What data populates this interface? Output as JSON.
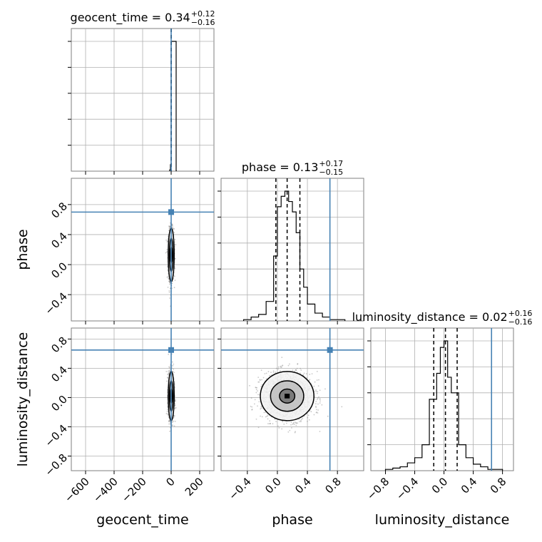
{
  "chart_data": {
    "type": "corner",
    "parameters": [
      "geocent_time",
      "phase",
      "luminosity_distance"
    ],
    "truths": {
      "geocent_time": 0.0,
      "phase": 0.7,
      "luminosity_distance": 0.65
    },
    "titles": [
      {
        "param": "geocent_time",
        "prefix": "geocent_time = 0.34",
        "sup": "+0.12",
        "sub": "−0.16"
      },
      {
        "param": "phase",
        "prefix": "phase = 0.13",
        "sup": "+0.17",
        "sub": "−0.15"
      },
      {
        "param": "luminosity_distance",
        "prefix": "luminosity_distance = 0.02",
        "sup": "+0.16",
        "sub": "−0.16"
      }
    ],
    "axes": {
      "geocent_time": {
        "range": [
          -700,
          300
        ],
        "ticks": [
          -600,
          -400,
          -200,
          0,
          200
        ],
        "tick_labels": [
          "−600",
          "−400",
          "−200",
          "0",
          "200"
        ]
      },
      "phase": {
        "range": [
          -0.75,
          1.15
        ],
        "ticks": [
          -0.4,
          0.0,
          0.4,
          0.8
        ],
        "tick_labels": [
          "−0.4",
          "0.0",
          "0.4",
          "0.8"
        ]
      },
      "luminosity_distance": {
        "range": [
          -1.0,
          0.95
        ],
        "ticks": [
          -0.8,
          -0.4,
          0.0,
          0.4,
          0.8
        ],
        "tick_labels": [
          "−0.8",
          "−0.4",
          "0.0",
          "0.4",
          "0.8"
        ]
      }
    },
    "grid": true,
    "histograms": {
      "geocent_time": {
        "bin_edges": [
          -10,
          -5,
          0,
          5,
          10,
          15,
          20,
          25,
          30,
          35,
          40
        ],
        "counts": [
          0.01,
          0.05,
          1.0,
          1.0,
          1.0,
          1.0,
          1.0,
          1.0,
          1.0,
          0.0
        ],
        "quantiles": [
          0.18,
          0.34,
          0.46
        ]
      },
      "phase": {
        "bin_edges": [
          -0.45,
          -0.35,
          -0.25,
          -0.15,
          -0.05,
          0.0,
          0.05,
          0.1,
          0.15,
          0.2,
          0.25,
          0.3,
          0.35,
          0.4,
          0.5,
          0.6,
          0.7,
          0.8,
          0.9
        ],
        "counts": [
          0.01,
          0.03,
          0.05,
          0.15,
          0.5,
          0.88,
          0.96,
          1.0,
          0.92,
          0.84,
          0.68,
          0.4,
          0.26,
          0.13,
          0.06,
          0.03,
          0.01,
          0.01
        ],
        "quantiles": [
          -0.02,
          0.13,
          0.3
        ]
      },
      "luminosity_distance": {
        "bin_edges": [
          -0.8,
          -0.7,
          -0.6,
          -0.5,
          -0.4,
          -0.3,
          -0.2,
          -0.1,
          -0.05,
          0.0,
          0.05,
          0.1,
          0.2,
          0.3,
          0.4,
          0.5,
          0.6,
          0.7,
          0.8
        ],
        "counts": [
          0.01,
          0.02,
          0.03,
          0.06,
          0.1,
          0.2,
          0.55,
          0.75,
          0.95,
          1.0,
          0.72,
          0.6,
          0.2,
          0.1,
          0.05,
          0.03,
          0.01,
          0.01
        ],
        "quantiles": [
          -0.14,
          0.02,
          0.18
        ]
      }
    },
    "density_2d": {
      "phase_vs_geocent_time": {
        "center": [
          0.34,
          0.13
        ],
        "spread": [
          10,
          0.17
        ],
        "contour_levels": 3,
        "points": 1200
      },
      "luminosity_distance_vs_geocent_time": {
        "center": [
          0.34,
          0.02
        ],
        "spread": [
          10,
          0.16
        ],
        "contour_levels": 3,
        "points": 1200
      },
      "luminosity_distance_vs_phase": {
        "center": [
          0.13,
          0.02
        ],
        "spread": [
          0.17,
          0.16
        ],
        "contour_levels": 3,
        "points": 1600
      }
    },
    "colors": {
      "truth": "#4682b4",
      "hist": "#000000",
      "grid": "#b0b0b0",
      "scatter": "#888888"
    }
  }
}
